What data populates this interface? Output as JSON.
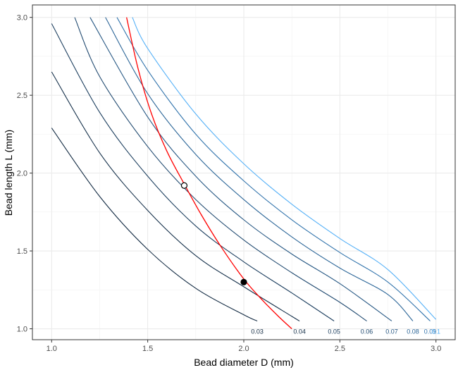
{
  "chart_data": {
    "type": "line",
    "title": "",
    "xlabel": "Bead diameter D (mm)",
    "ylabel": "Bead length L (mm)",
    "xlim": [
      0.9,
      3.1
    ],
    "ylim": [
      0.93,
      3.08
    ],
    "x_ticks": [
      "1.0",
      "1.5",
      "2.0",
      "2.5",
      "3.0"
    ],
    "y_ticks": [
      "1.0",
      "1.5",
      "2.0",
      "2.5",
      "3.0"
    ],
    "grid": true,
    "background": "#ffffff",
    "series": [
      {
        "name": "0.03",
        "color": "#132B43",
        "points": [
          [
            1.0,
            2.29
          ],
          [
            1.25,
            1.85
          ],
          [
            1.5,
            1.51
          ],
          [
            1.75,
            1.26
          ],
          [
            2.0,
            1.09
          ],
          [
            2.07,
            1.05
          ]
        ]
      },
      {
        "name": "0.04",
        "color": "#16314b",
        "points": [
          [
            1.0,
            2.65
          ],
          [
            1.25,
            2.13
          ],
          [
            1.5,
            1.76
          ],
          [
            1.75,
            1.47
          ],
          [
            2.0,
            1.27
          ],
          [
            2.25,
            1.08
          ],
          [
            2.29,
            1.05
          ]
        ]
      },
      {
        "name": "0.05",
        "color": "#1d3f5f",
        "points": [
          [
            1.0,
            2.96
          ],
          [
            1.25,
            2.39
          ],
          [
            1.5,
            1.98
          ],
          [
            1.75,
            1.66
          ],
          [
            2.0,
            1.43
          ],
          [
            2.25,
            1.23
          ],
          [
            2.47,
            1.05
          ]
        ]
      },
      {
        "name": "0.06",
        "color": "#224b71",
        "points": [
          [
            1.12,
            3.0
          ],
          [
            1.25,
            2.62
          ],
          [
            1.5,
            2.17
          ],
          [
            1.75,
            1.83
          ],
          [
            2.0,
            1.57
          ],
          [
            2.25,
            1.36
          ],
          [
            2.5,
            1.17
          ],
          [
            2.64,
            1.05
          ]
        ]
      },
      {
        "name": "0.07",
        "color": "#275884",
        "points": [
          [
            1.2,
            3.0
          ],
          [
            1.5,
            2.36
          ],
          [
            1.75,
            1.98
          ],
          [
            2.0,
            1.7
          ],
          [
            2.25,
            1.48
          ],
          [
            2.5,
            1.29
          ],
          [
            2.77,
            1.05
          ]
        ]
      },
      {
        "name": "0.08",
        "color": "#2c6698",
        "points": [
          [
            1.28,
            3.0
          ],
          [
            1.5,
            2.51
          ],
          [
            1.75,
            2.12
          ],
          [
            2.0,
            1.83
          ],
          [
            2.25,
            1.59
          ],
          [
            2.5,
            1.39
          ],
          [
            2.75,
            1.22
          ],
          [
            2.88,
            1.05
          ]
        ]
      },
      {
        "name": "0.09",
        "color": "#3274ac",
        "points": [
          [
            1.34,
            3.0
          ],
          [
            1.5,
            2.66
          ],
          [
            1.75,
            2.25
          ],
          [
            2.0,
            1.95
          ],
          [
            2.25,
            1.7
          ],
          [
            2.5,
            1.49
          ],
          [
            2.75,
            1.3
          ],
          [
            2.97,
            1.05
          ]
        ]
      },
      {
        "name": "0.1",
        "color": "#56B1F7",
        "points": [
          [
            1.42,
            3.0
          ],
          [
            1.5,
            2.8
          ],
          [
            1.75,
            2.38
          ],
          [
            2.0,
            2.06
          ],
          [
            2.25,
            1.8
          ],
          [
            2.5,
            1.58
          ],
          [
            2.75,
            1.38
          ],
          [
            3.0,
            1.06
          ]
        ]
      }
    ],
    "curve": {
      "color": "#ff0000",
      "points": [
        [
          1.39,
          3.0
        ],
        [
          1.45,
          2.67
        ],
        [
          1.52,
          2.38
        ],
        [
          1.6,
          2.14
        ],
        [
          1.69,
          1.93
        ],
        [
          1.78,
          1.73
        ],
        [
          1.88,
          1.53
        ],
        [
          2.0,
          1.32
        ],
        [
          2.1,
          1.18
        ],
        [
          2.18,
          1.08
        ],
        [
          2.25,
          1.0
        ]
      ]
    },
    "points": [
      {
        "x": 1.69,
        "y": 1.92,
        "fill": "open"
      },
      {
        "x": 2.0,
        "y": 1.3,
        "fill": "filled"
      }
    ]
  }
}
